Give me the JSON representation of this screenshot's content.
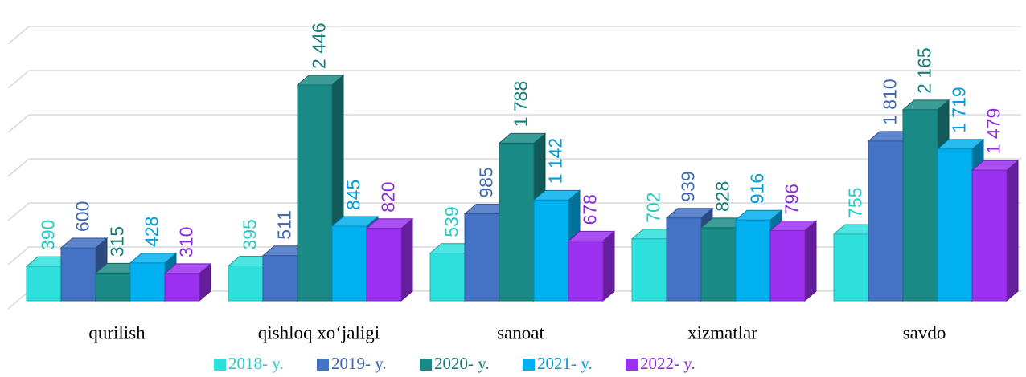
{
  "chart_data": {
    "type": "bar3d",
    "categories": [
      "qurilish",
      "qishloq xo‘jaligi",
      "sanoat",
      "xizmatlar",
      "savdo"
    ],
    "series": [
      {
        "name": "2018- y.",
        "color": "#2ee0dc",
        "values": [
          390,
          395,
          539,
          702,
          755
        ],
        "value_labels": [
          "390",
          "395",
          "539",
          "702",
          "755"
        ]
      },
      {
        "name": "2019- y.",
        "color": "#4472c4",
        "values": [
          600,
          511,
          985,
          939,
          1810
        ],
        "value_labels": [
          "600",
          "511",
          "985",
          "939",
          "1 810"
        ]
      },
      {
        "name": "2020- y.",
        "color": "#1a8a86",
        "values": [
          315,
          2446,
          1788,
          828,
          2165
        ],
        "value_labels": [
          "315",
          "2 446",
          "1 788",
          "828",
          "2 165"
        ]
      },
      {
        "name": "2021- y.",
        "color": "#00b0f0",
        "values": [
          428,
          845,
          1142,
          916,
          1719
        ],
        "value_labels": [
          "428",
          "845",
          "1 142",
          "916",
          "1 719"
        ]
      },
      {
        "name": "2022- y.",
        "color": "#9b30f0",
        "values": [
          310,
          820,
          678,
          796,
          1479
        ],
        "value_labels": [
          "310",
          "820",
          "678",
          "796",
          "1 479"
        ]
      }
    ],
    "ylim": [
      0,
      3000
    ],
    "yticks": [
      0,
      500,
      1000,
      1500,
      2000,
      2500,
      3000
    ],
    "grid": true
  }
}
